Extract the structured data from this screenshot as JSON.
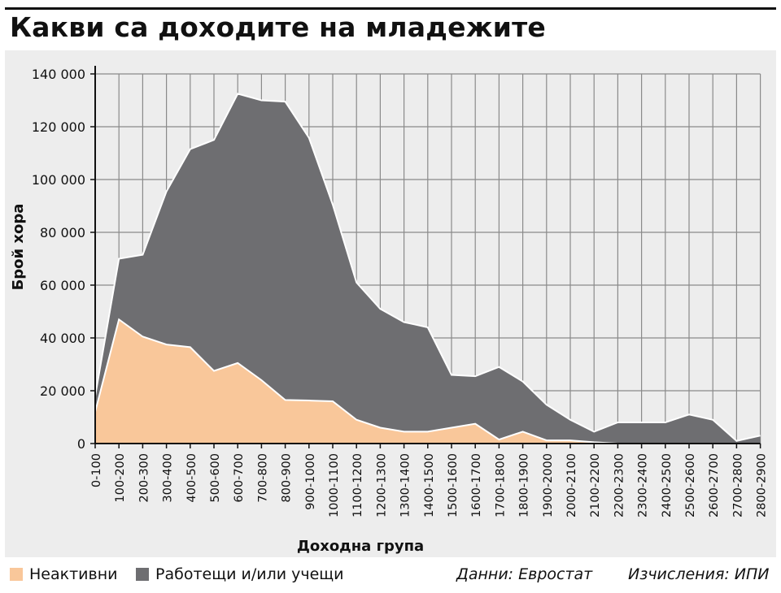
{
  "title": "Какви са доходите на младежите",
  "legend": [
    {
      "label": "Неактивни",
      "color": "#f9c79a"
    },
    {
      "label": "Работещи и/или учещи",
      "color": "#6e6e71"
    }
  ],
  "source": "Данни: Евростат",
  "calculations": "Изчисления: ИПИ",
  "chart_data": {
    "type": "area",
    "stacked": true,
    "title": "",
    "xlabel": "Доходна група",
    "ylabel": "Брой хора",
    "ylim": [
      0,
      140000
    ],
    "yticks": [
      0,
      20000,
      40000,
      60000,
      80000,
      100000,
      120000,
      140000
    ],
    "ytick_labels": [
      "0",
      "20 000",
      "40 000",
      "60 000",
      "80 000",
      "100 000",
      "120 000",
      "140 000"
    ],
    "grid": true,
    "categories": [
      "0-100",
      "100-200",
      "200-300",
      "300-400",
      "400-500",
      "500-600",
      "600-700",
      "700-800",
      "800-900",
      "900-1000",
      "1000-1100",
      "1100-1200",
      "1200-1300",
      "1300-1400",
      "1400-1500",
      "1500-1600",
      "1600-1700",
      "1700-1800",
      "1800-1900",
      "1900-2000",
      "2000-2100",
      "2100-2200",
      "2200-2300",
      "2300-2400",
      "2400-2500",
      "2500-2600",
      "2600-2700",
      "2700-2800",
      "2800-2900"
    ],
    "series": [
      {
        "name": "Неактивни",
        "color": "#f9c79a",
        "values": [
          12000,
          47000,
          40500,
          37500,
          36500,
          27500,
          30500,
          24000,
          16500,
          16300,
          16000,
          9000,
          6000,
          4500,
          4500,
          6000,
          7500,
          1500,
          4500,
          1200,
          1200,
          500,
          0,
          0,
          0,
          0,
          0,
          0,
          0
        ]
      },
      {
        "name": "Работещи и/или учещи",
        "color": "#6e6e71",
        "values": [
          6000,
          23000,
          31000,
          58000,
          75000,
          87500,
          102000,
          106000,
          113000,
          99500,
          74500,
          52000,
          45000,
          41500,
          39500,
          20000,
          18000,
          27500,
          19000,
          13500,
          7800,
          4000,
          8000,
          8000,
          8000,
          11000,
          9000,
          1000,
          3000
        ]
      }
    ]
  }
}
